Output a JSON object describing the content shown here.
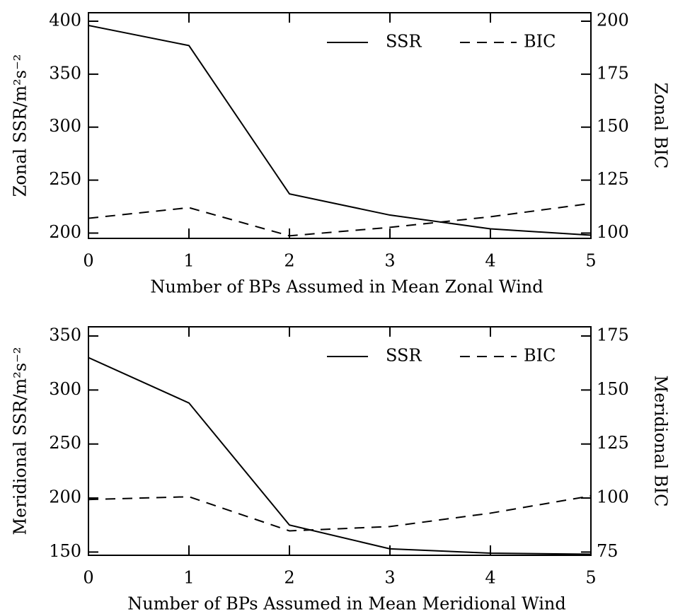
{
  "chart_data": [
    {
      "type": "line",
      "x": [
        0,
        1,
        2,
        3,
        4,
        5
      ],
      "xlim": [
        0,
        5
      ],
      "xticks": [
        0,
        1,
        2,
        3,
        4,
        5
      ],
      "xlabel": "Number of BPs Assumed in Mean Zonal Wind",
      "ylabel": "Zonal SSR/m²s⁻²",
      "y2label": "Zonal BIC",
      "ylim": [
        195,
        408
      ],
      "yticks": [
        200,
        250,
        300,
        350,
        400
      ],
      "y2lim": [
        97.5,
        204
      ],
      "y2ticks": [
        100,
        125,
        150,
        175,
        200
      ],
      "legend": "upper right",
      "series": [
        {
          "name": "SSR",
          "color": "#000000",
          "style": "solid",
          "values": [
            396,
            377,
            237,
            217,
            204,
            198
          ]
        },
        {
          "name": "BIC",
          "color": "#000000",
          "style": "dashed",
          "axis": "y2",
          "values": [
            107,
            112,
            98.7,
            102.7,
            107.7,
            114
          ]
        }
      ]
    },
    {
      "type": "line",
      "x": [
        0,
        1,
        2,
        3,
        4,
        5
      ],
      "xlim": [
        0,
        5
      ],
      "xticks": [
        0,
        1,
        2,
        3,
        4,
        5
      ],
      "xlabel": "Number of BPs Assumed in Mean Meridional Wind",
      "ylabel": "Meridional SSR/m²s⁻²",
      "y2label": "Meridional BIC",
      "ylim": [
        147,
        358.5
      ],
      "yticks": [
        150,
        200,
        250,
        300,
        350
      ],
      "y2lim": [
        73.5,
        179.25
      ],
      "y2ticks": [
        75,
        100,
        125,
        150,
        175
      ],
      "legend": "upper right",
      "series": [
        {
          "name": "SSR",
          "color": "#000000",
          "style": "solid",
          "values": [
            330,
            288,
            175,
            153,
            149,
            148
          ]
        },
        {
          "name": "BIC",
          "color": "#000000",
          "style": "dashed",
          "axis": "y2",
          "values": [
            99.3,
            100.6,
            84.8,
            86.8,
            93,
            101
          ]
        }
      ]
    }
  ]
}
